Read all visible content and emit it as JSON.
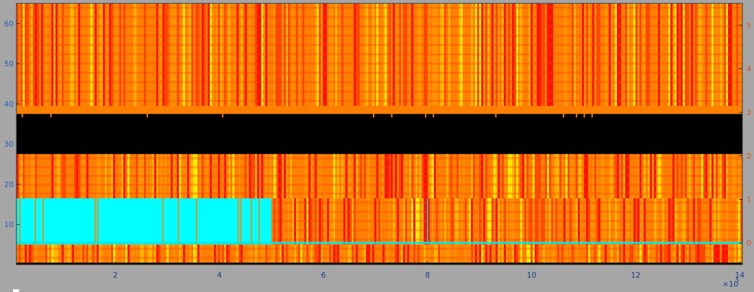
{
  "chart_data": {
    "type": "heatmap",
    "title": "",
    "xlabel": "",
    "ylabel_left": "",
    "ylabel_right": "",
    "x_scale_label": "×10",
    "x_scale_exponent": "5",
    "xlim": [
      0.1,
      14.05
    ],
    "ylim_left": [
      0,
      65
    ],
    "ylim_right": [
      -0.5,
      5.5
    ],
    "x_ticks": [
      2,
      4,
      6,
      8,
      10,
      12,
      14
    ],
    "y_ticks_left": [
      10,
      20,
      30,
      40,
      50,
      60
    ],
    "y_ticks_right": [
      0,
      1,
      2,
      3,
      4,
      5
    ],
    "colormap": [
      "#ff0000",
      "#ff4000",
      "#ff8000",
      "#ff9500",
      "#ffc000",
      "#ffff00"
    ],
    "tick_colors": {
      "x": "#1a3a8a",
      "left": "#1f5fb0",
      "right": "#d95319"
    },
    "bands": [
      {
        "name": "upper",
        "y_range": [
          39.5,
          65
        ],
        "color": "heat"
      },
      {
        "name": "gap",
        "y_range": [
          27.5,
          37.5
        ],
        "color": "#000000"
      },
      {
        "name": "middle",
        "y_range": [
          16.5,
          27.5
        ],
        "color": "heat"
      },
      {
        "name": "lower",
        "y_range": [
          5,
          16.5
        ],
        "color": "heat"
      },
      {
        "name": "bottom",
        "y_range": [
          0.5,
          5
        ],
        "color": "heat"
      },
      {
        "name": "floor",
        "y_range": [
          0,
          0.5
        ],
        "color": "#000000"
      }
    ],
    "overlay_region": {
      "x_range": [
        0.1,
        5.0
      ],
      "y_range": [
        5,
        16.5
      ],
      "color": "#00ffff"
    },
    "series_right": {
      "name": "",
      "color": "#00e6e6",
      "x": [
        0.1,
        14.05
      ],
      "y": [
        0,
        0
      ]
    }
  }
}
